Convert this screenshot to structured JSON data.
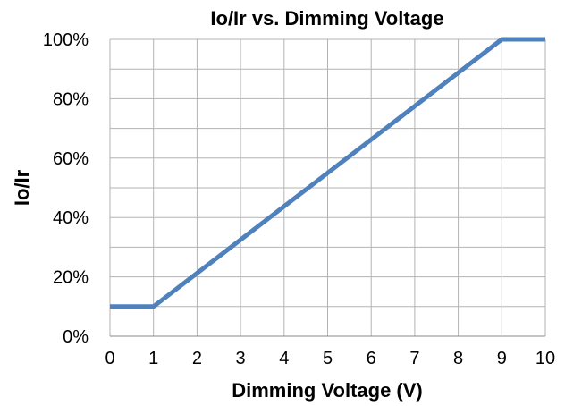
{
  "chart_data": {
    "type": "line",
    "title": "Io/Ir vs. Dimming Voltage",
    "xlabel": "Dimming Voltage (V)",
    "ylabel": "Io/Ir",
    "xlim": [
      0,
      10
    ],
    "ylim": [
      0,
      100
    ],
    "x_ticks": [
      0,
      1,
      2,
      3,
      4,
      5,
      6,
      7,
      8,
      9,
      10
    ],
    "y_ticks": [
      0,
      20,
      40,
      60,
      80,
      100
    ],
    "y_tick_labels": [
      "0%",
      "20%",
      "40%",
      "60%",
      "80%",
      "100%"
    ],
    "grid": true,
    "series": [
      {
        "x": [
          0,
          1,
          9,
          10
        ],
        "values": [
          10,
          10,
          100,
          100
        ],
        "color": "#4f81bd"
      }
    ]
  }
}
